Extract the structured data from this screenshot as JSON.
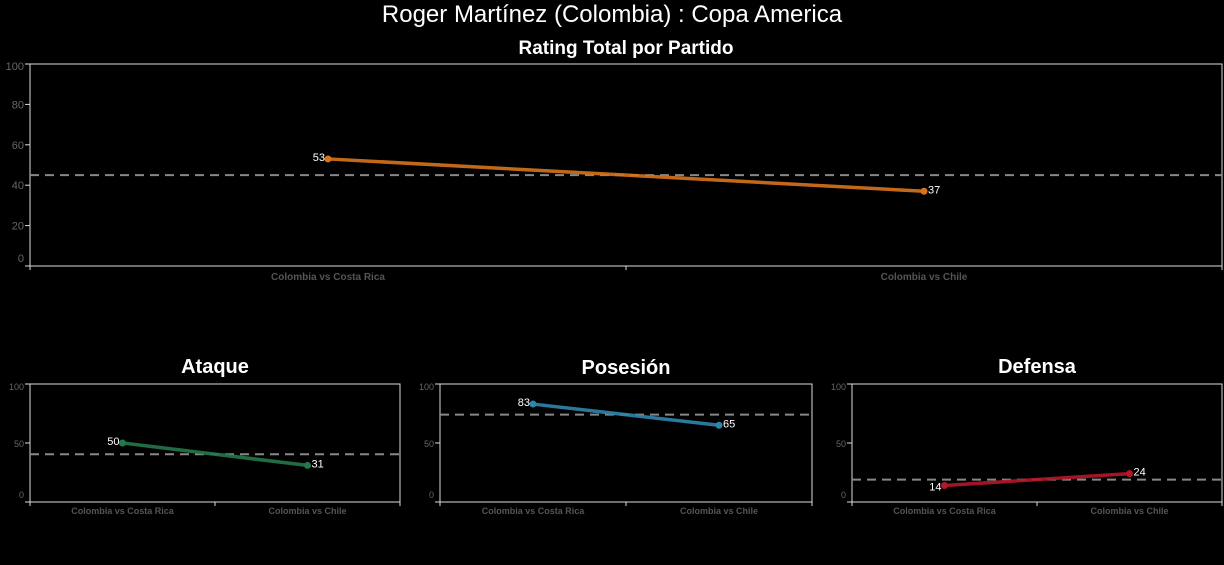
{
  "title": "Roger Martínez (Colombia) :  Copa  America",
  "chart_data": [
    {
      "type": "line",
      "title": "Rating Total por Partido",
      "categories": [
        "Colombia vs Costa Rica",
        "Colombia vs Chile"
      ],
      "values": [
        53,
        37
      ],
      "reference_line": 45,
      "ylim": [
        0,
        100
      ],
      "yticks": [
        0,
        20,
        40,
        60,
        80,
        100
      ],
      "color": "#d8731c",
      "grid": false
    },
    {
      "type": "line",
      "title": "Ataque",
      "categories": [
        "Colombia vs Costa Rica",
        "Colombia vs Chile"
      ],
      "values": [
        50,
        31
      ],
      "reference_line": 40.5,
      "ylim": [
        0,
        100
      ],
      "yticks": [
        0,
        50,
        100
      ],
      "color": "#23794b",
      "grid": false
    },
    {
      "type": "line",
      "title": "Posesión",
      "categories": [
        "Colombia vs Costa Rica",
        "Colombia vs Chile"
      ],
      "values": [
        83,
        65
      ],
      "reference_line": 74,
      "ylim": [
        0,
        100
      ],
      "yticks": [
        0,
        50,
        100
      ],
      "color": "#2f86ad",
      "grid": false
    },
    {
      "type": "line",
      "title": "Defensa",
      "categories": [
        "Colombia vs Costa Rica",
        "Colombia vs Chile"
      ],
      "values": [
        14,
        24
      ],
      "reference_line": 19,
      "ylim": [
        0,
        100
      ],
      "yticks": [
        0,
        50,
        100
      ],
      "color": "#b5172a",
      "grid": false
    }
  ]
}
